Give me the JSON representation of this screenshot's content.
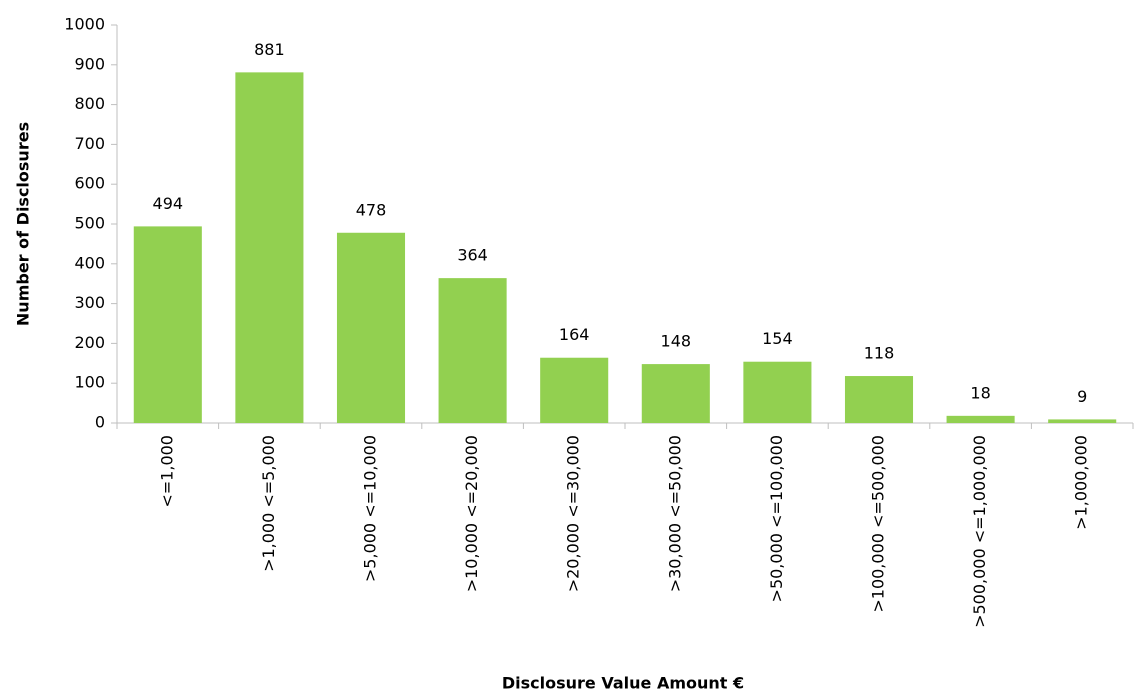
{
  "chart_data": {
    "type": "bar",
    "xlabel": "Disclosure Value Amount €",
    "ylabel": "Number of Disclosures",
    "categories": [
      "<=1,000",
      ">1,000 <=5,000",
      ">5,000 <=10,000",
      ">10,000 <=20,000",
      ">20,000 <=30,000",
      ">30,000 <=50,000",
      ">50,000 <=100,000",
      ">100,000 <=500,000",
      ">500,000 <=1,000,000",
      ">1,000,000"
    ],
    "values": [
      494,
      881,
      478,
      364,
      164,
      148,
      154,
      118,
      18,
      9
    ],
    "color": "#92d050",
    "ylim": [
      0,
      1000
    ],
    "yticks": [
      0,
      100,
      200,
      300,
      400,
      500,
      600,
      700,
      800,
      900,
      1000
    ],
    "grid": false
  }
}
